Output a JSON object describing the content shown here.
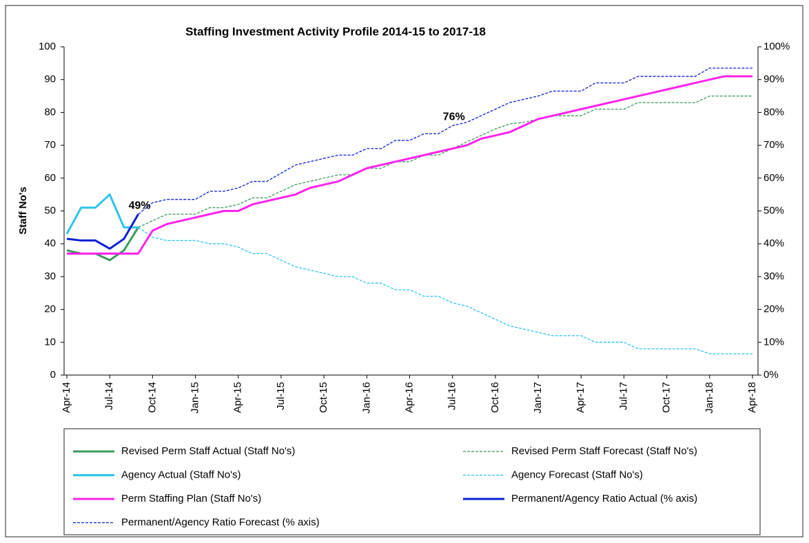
{
  "chart_data": {
    "type": "line",
    "title": "Staffing Investment Activity Profile 2014-15  to 2017-18",
    "y_label": "Staff No's",
    "categories": [
      "Apr-14",
      null,
      null,
      "Jul-14",
      null,
      null,
      "Oct-14",
      null,
      null,
      "Jan-15",
      null,
      null,
      "Apr-15",
      null,
      null,
      "Jul-15",
      null,
      null,
      "Oct-15",
      null,
      null,
      "Jan-16",
      null,
      null,
      "Apr-16",
      null,
      null,
      "Jul-16",
      null,
      null,
      "Oct-16",
      null,
      null,
      "Jan-17",
      null,
      null,
      "Apr-17",
      null,
      null,
      "Jul-17",
      null,
      null,
      "Oct-17",
      null,
      null,
      "Jan-18",
      null,
      null,
      "Apr-18"
    ],
    "ylim": [
      0,
      100
    ],
    "yticks": [
      0,
      10,
      20,
      30,
      40,
      50,
      60,
      70,
      80,
      90,
      100
    ],
    "y2lim": [
      0,
      100
    ],
    "y2ticks": [
      {
        "value": 0,
        "label": "0%"
      },
      {
        "value": 10,
        "label": "10%"
      },
      {
        "value": 20,
        "label": "20%"
      },
      {
        "value": 30,
        "label": "30%"
      },
      {
        "value": 40,
        "label": "40%"
      },
      {
        "value": 50,
        "label": "50%"
      },
      {
        "value": 60,
        "label": "60%"
      },
      {
        "value": 70,
        "label": "70%"
      },
      {
        "value": 80,
        "label": "80%"
      },
      {
        "value": 90,
        "label": "90%"
      },
      {
        "value": 100,
        "label": "100%"
      }
    ],
    "series": [
      {
        "name": "Revised Perm Staff Actual (Staff No's)",
        "color": "#3a9a5c",
        "line_style": "solid",
        "values": [
          38,
          37,
          37,
          35,
          38,
          45,
          null,
          null,
          null,
          null,
          null,
          null,
          null,
          null,
          null,
          null,
          null,
          null,
          null,
          null,
          null,
          null,
          null,
          null,
          null,
          null,
          null,
          null,
          null,
          null,
          null,
          null,
          null,
          null,
          null,
          null,
          null,
          null,
          null,
          null,
          null,
          null,
          null,
          null,
          null,
          null,
          null,
          null,
          null
        ]
      },
      {
        "name": "Revised Perm Staff Forecast (Staff No's)",
        "color": "#3a9a5c",
        "line_style": "dashed",
        "values": [
          null,
          null,
          null,
          null,
          null,
          45,
          47,
          49,
          49,
          49,
          51,
          51,
          52,
          54,
          54,
          56,
          58,
          59,
          60,
          61,
          61,
          63,
          63,
          65,
          65,
          67,
          67,
          69,
          71,
          73,
          75,
          76.5,
          77,
          78,
          79,
          79,
          79,
          81,
          81,
          81,
          83,
          83,
          83,
          83,
          83,
          85,
          85,
          85,
          85
        ]
      },
      {
        "name": "Agency Actual (Staff No's)",
        "color": "#2ec4ec",
        "line_style": "solid",
        "values": [
          43,
          51,
          51,
          55,
          45,
          45,
          null,
          null,
          null,
          null,
          null,
          null,
          null,
          null,
          null,
          null,
          null,
          null,
          null,
          null,
          null,
          null,
          null,
          null,
          null,
          null,
          null,
          null,
          null,
          null,
          null,
          null,
          null,
          null,
          null,
          null,
          null,
          null,
          null,
          null,
          null,
          null,
          null,
          null,
          null,
          null,
          null,
          null,
          null
        ]
      },
      {
        "name": "Agency Forecast (Staff No's)",
        "color": "#2ec4ec",
        "line_style": "dashed",
        "values": [
          null,
          null,
          null,
          null,
          null,
          45,
          42,
          41,
          41,
          41,
          40,
          40,
          39,
          37,
          37,
          35,
          33,
          32,
          31,
          30,
          30,
          28,
          28,
          26,
          26,
          24,
          24,
          22,
          21,
          19,
          17,
          15,
          14,
          13,
          12,
          12,
          12,
          10,
          10,
          10,
          8,
          8,
          8,
          8,
          8,
          6.5,
          6.5,
          6.5,
          6.5
        ]
      },
      {
        "name": "Perm Staffing Plan (Staff No's)",
        "color": "#ff22ee",
        "line_style": "solid",
        "values": [
          37,
          37,
          37,
          37,
          37,
          37,
          44,
          46,
          47,
          48,
          49,
          50,
          50,
          52,
          53,
          54,
          55,
          57,
          58,
          59,
          61,
          63,
          64,
          65,
          66,
          67,
          68,
          69,
          70,
          72,
          73,
          74,
          76,
          78,
          79,
          80,
          81,
          82,
          83,
          84,
          85,
          86,
          87,
          88,
          89,
          90,
          91,
          91,
          91
        ]
      },
      {
        "name": "Permanent/Agency Ratio Actual (% axis)",
        "color": "#0a1ed2",
        "line_style": "solid",
        "axis": "y2",
        "values": [
          41.5,
          41,
          41,
          38.5,
          41.5,
          49,
          null,
          null,
          null,
          null,
          null,
          null,
          null,
          null,
          null,
          null,
          null,
          null,
          null,
          null,
          null,
          null,
          null,
          null,
          null,
          null,
          null,
          null,
          null,
          null,
          null,
          null,
          null,
          null,
          null,
          null,
          null,
          null,
          null,
          null,
          null,
          null,
          null,
          null,
          null,
          null,
          null,
          null,
          null
        ],
        "value_labels": [
          null,
          null,
          null,
          null,
          null,
          "49%",
          null,
          null,
          null,
          null,
          null,
          null,
          null,
          null,
          null,
          null,
          null,
          null,
          null,
          null,
          null,
          null,
          null,
          null,
          null,
          null,
          null,
          null,
          null,
          null,
          null,
          null,
          null,
          null,
          null,
          null,
          null,
          null,
          null,
          null,
          null,
          null,
          null,
          null,
          null,
          null,
          null,
          null,
          null
        ]
      },
      {
        "name": "Permanent/Agency Ratio Forecast (% axis)",
        "color": "#0a1ed2",
        "line_style": "dashed",
        "axis": "y2",
        "values": [
          null,
          null,
          null,
          null,
          null,
          49,
          52.5,
          53.5,
          53.5,
          53.5,
          56,
          56,
          57,
          59,
          59,
          61.5,
          64,
          65,
          66,
          67,
          67,
          69,
          69,
          71.5,
          71.5,
          73.5,
          73.5,
          76,
          77,
          79,
          81,
          83,
          84,
          85,
          86.5,
          86.5,
          86.5,
          89,
          89,
          89,
          91,
          91,
          91,
          91,
          91,
          93.5,
          93.5,
          93.5,
          93.5
        ],
        "value_labels": [
          null,
          null,
          null,
          null,
          null,
          null,
          null,
          null,
          null,
          null,
          null,
          null,
          null,
          null,
          null,
          null,
          null,
          null,
          null,
          null,
          null,
          null,
          null,
          null,
          null,
          null,
          null,
          "76%",
          null,
          null,
          null,
          null,
          null,
          null,
          null,
          null,
          null,
          null,
          null,
          null,
          null,
          null,
          null,
          null,
          null,
          null,
          null,
          null,
          null
        ]
      }
    ]
  }
}
